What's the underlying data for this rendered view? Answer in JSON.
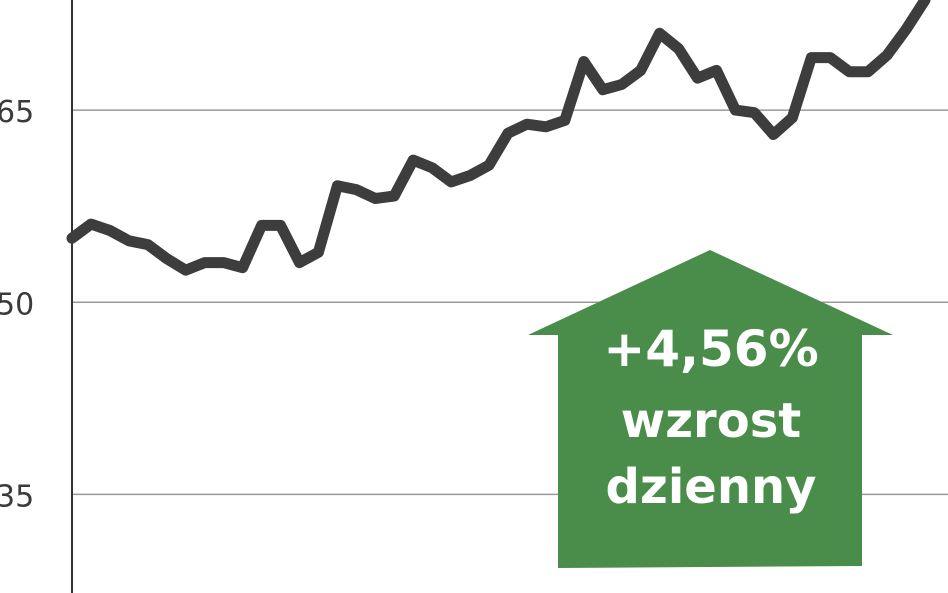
{
  "chart_data": {
    "type": "line",
    "title": "",
    "xlabel": "",
    "ylabel": "",
    "ylim": [
      27.3,
      73.6
    ],
    "grid": true,
    "y_ticks": [
      "35",
      "50",
      "65"
    ],
    "y_tick_values": [
      35,
      50,
      65
    ],
    "line_color": "#3d3d3d",
    "values": [
      55.0,
      56.1,
      55.6,
      54.8,
      54.5,
      53.4,
      52.5,
      53.1,
      53.1,
      52.7,
      56.0,
      56.0,
      53.1,
      53.9,
      59.1,
      58.8,
      58.1,
      58.3,
      61.1,
      60.5,
      59.4,
      59.9,
      60.7,
      63.2,
      63.9,
      63.7,
      64.2,
      68.8,
      66.6,
      67.0,
      68.1,
      71.0,
      69.8,
      67.5,
      68.1,
      65.0,
      64.8,
      63.1,
      64.4,
      69.1,
      69.1,
      68.0,
      68.0,
      69.3,
      71.3,
      73.6
    ],
    "annotation": {
      "icon": "up-arrow",
      "color": "#4a8c4a",
      "value": "+4,56%",
      "line1": "wzrost",
      "line2": "dzienny"
    }
  }
}
